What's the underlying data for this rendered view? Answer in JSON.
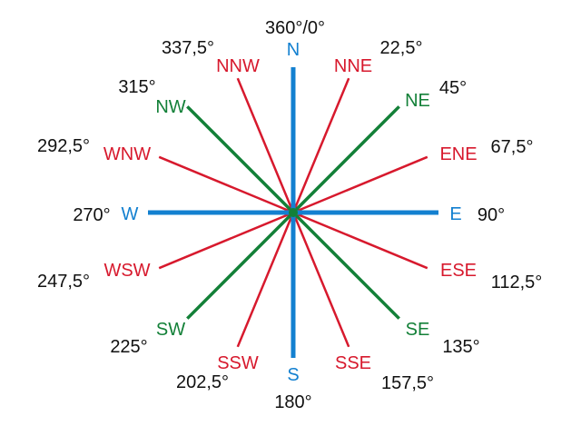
{
  "colors": {
    "cardinal": "#1380d0",
    "intercardinal": "#138038",
    "secondary": "#d7192d",
    "degree_text": "#111111"
  },
  "directions": [
    {
      "key": "n",
      "label": "N",
      "degree": "360°/0°",
      "bearing": 0,
      "kind": "cardinal"
    },
    {
      "key": "nne",
      "label": "NNE",
      "degree": "22,5°",
      "bearing": 22.5,
      "kind": "secondary"
    },
    {
      "key": "ne",
      "label": "NE",
      "degree": "45°",
      "bearing": 45,
      "kind": "intercardinal"
    },
    {
      "key": "ene",
      "label": "ENE",
      "degree": "67,5°",
      "bearing": 67.5,
      "kind": "secondary"
    },
    {
      "key": "e",
      "label": "E",
      "degree": "90°",
      "bearing": 90,
      "kind": "cardinal"
    },
    {
      "key": "ese",
      "label": "ESE",
      "degree": "112,5°",
      "bearing": 112.5,
      "kind": "secondary"
    },
    {
      "key": "se",
      "label": "SE",
      "degree": "135°",
      "bearing": 135,
      "kind": "intercardinal"
    },
    {
      "key": "sse",
      "label": "SSE",
      "degree": "157,5°",
      "bearing": 157.5,
      "kind": "secondary"
    },
    {
      "key": "s",
      "label": "S",
      "degree": "180°",
      "bearing": 180,
      "kind": "cardinal"
    },
    {
      "key": "ssw",
      "label": "SSW",
      "degree": "202,5°",
      "bearing": 202.5,
      "kind": "secondary"
    },
    {
      "key": "sw",
      "label": "SW",
      "degree": "225°",
      "bearing": 225,
      "kind": "intercardinal"
    },
    {
      "key": "wsw",
      "label": "WSW",
      "degree": "247,5°",
      "bearing": 247.5,
      "kind": "secondary"
    },
    {
      "key": "w",
      "label": "W",
      "degree": "270°",
      "bearing": 270,
      "kind": "cardinal"
    },
    {
      "key": "wnw",
      "label": "WNW",
      "degree": "292,5°",
      "bearing": 292.5,
      "kind": "secondary"
    },
    {
      "key": "nw",
      "label": "NW",
      "degree": "315°",
      "bearing": 315,
      "kind": "intercardinal"
    },
    {
      "key": "nnw",
      "label": "NNW",
      "degree": "337,5°",
      "bearing": 337.5,
      "kind": "secondary"
    }
  ]
}
